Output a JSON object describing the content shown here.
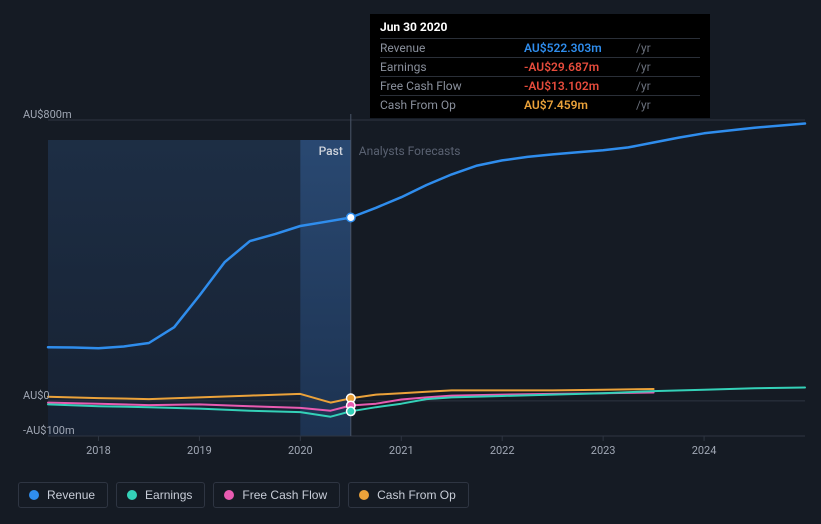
{
  "chart": {
    "type": "line",
    "background_color": "#151b24",
    "grid_color": "#2e3542",
    "text_color": "#a0a7b4",
    "muted_text_color": "#5a6272",
    "past_area_fill": "#1b2a41",
    "highlight_fill": "#1f3a5f",
    "y_axis": {
      "min": -100,
      "max": 800,
      "ticks": [
        {
          "value": 800,
          "label": "AU$800m"
        },
        {
          "value": 0,
          "label": "AU$0"
        },
        {
          "value": -100,
          "label": "-AU$100m"
        }
      ]
    },
    "x_axis": {
      "min": 2017.5,
      "max": 2025.0,
      "ticks": [
        2018,
        2019,
        2020,
        2021,
        2022,
        2023,
        2024
      ]
    },
    "divider_x": 2020.5,
    "highlight_band": {
      "start": 2020.0,
      "end": 2020.5
    },
    "section_labels": {
      "past": "Past",
      "forecast": "Analysts Forecasts"
    },
    "series": [
      {
        "id": "revenue",
        "name": "Revenue",
        "color": "#2f8ded",
        "width": 2.5,
        "data": [
          [
            2017.5,
            153
          ],
          [
            2017.75,
            152
          ],
          [
            2018.0,
            150
          ],
          [
            2018.25,
            155
          ],
          [
            2018.5,
            165
          ],
          [
            2018.75,
            210
          ],
          [
            2019.0,
            300
          ],
          [
            2019.25,
            395
          ],
          [
            2019.5,
            455
          ],
          [
            2019.75,
            475
          ],
          [
            2020.0,
            498
          ],
          [
            2020.25,
            510
          ],
          [
            2020.5,
            522.303
          ],
          [
            2020.75,
            550
          ],
          [
            2021.0,
            580
          ],
          [
            2021.25,
            615
          ],
          [
            2021.5,
            645
          ],
          [
            2021.75,
            670
          ],
          [
            2022.0,
            685
          ],
          [
            2022.25,
            695
          ],
          [
            2022.5,
            702
          ],
          [
            2022.75,
            708
          ],
          [
            2023.0,
            714
          ],
          [
            2023.25,
            722
          ],
          [
            2023.5,
            736
          ],
          [
            2023.75,
            750
          ],
          [
            2024.0,
            762
          ],
          [
            2024.25,
            770
          ],
          [
            2024.5,
            778
          ],
          [
            2024.75,
            784
          ],
          [
            2025.0,
            790
          ]
        ]
      },
      {
        "id": "cash_from_op",
        "name": "Cash From Op",
        "color": "#eba23a",
        "width": 2,
        "forecast_end": 2023.5,
        "data": [
          [
            2017.5,
            12
          ],
          [
            2018.0,
            8
          ],
          [
            2018.5,
            5
          ],
          [
            2019.0,
            10
          ],
          [
            2019.5,
            15
          ],
          [
            2020.0,
            20
          ],
          [
            2020.3,
            -5
          ],
          [
            2020.5,
            7.459
          ],
          [
            2020.75,
            18
          ],
          [
            2021.0,
            22
          ],
          [
            2021.25,
            26
          ],
          [
            2021.5,
            30
          ],
          [
            2022.0,
            30
          ],
          [
            2022.5,
            30
          ],
          [
            2023.0,
            32
          ],
          [
            2023.5,
            34
          ]
        ]
      },
      {
        "id": "free_cash_flow",
        "name": "Free Cash Flow",
        "color": "#e85bb1",
        "width": 2,
        "forecast_end": 2023.5,
        "data": [
          [
            2017.5,
            -5
          ],
          [
            2018.0,
            -8
          ],
          [
            2018.5,
            -12
          ],
          [
            2019.0,
            -10
          ],
          [
            2019.5,
            -15
          ],
          [
            2020.0,
            -20
          ],
          [
            2020.3,
            -28
          ],
          [
            2020.5,
            -13.102
          ],
          [
            2020.75,
            -8
          ],
          [
            2021.0,
            4
          ],
          [
            2021.25,
            10
          ],
          [
            2021.5,
            15
          ],
          [
            2022.0,
            18
          ],
          [
            2022.5,
            20
          ],
          [
            2023.0,
            22
          ],
          [
            2023.5,
            24
          ]
        ]
      },
      {
        "id": "earnings",
        "name": "Earnings",
        "color": "#34d1b8",
        "width": 2,
        "data": [
          [
            2017.5,
            -10
          ],
          [
            2018.0,
            -15
          ],
          [
            2018.5,
            -18
          ],
          [
            2019.0,
            -22
          ],
          [
            2019.5,
            -28
          ],
          [
            2020.0,
            -32
          ],
          [
            2020.3,
            -45
          ],
          [
            2020.5,
            -29.687
          ],
          [
            2020.75,
            -18
          ],
          [
            2021.0,
            -8
          ],
          [
            2021.25,
            5
          ],
          [
            2021.5,
            10
          ],
          [
            2022.0,
            14
          ],
          [
            2022.5,
            18
          ],
          [
            2023.0,
            22
          ],
          [
            2023.5,
            28
          ],
          [
            2024.0,
            32
          ],
          [
            2024.5,
            36
          ],
          [
            2025.0,
            38
          ]
        ]
      }
    ],
    "markers": {
      "x": 2020.5,
      "points": [
        {
          "series": "revenue",
          "y": 522.303,
          "fill": "#ffffff",
          "stroke": "#2f8ded"
        },
        {
          "series": "cash_from_op",
          "y": 7.459,
          "fill": "#eba23a",
          "stroke": "#ffffff"
        },
        {
          "series": "free_cash_flow",
          "y": -13.102,
          "fill": "#e85bb1",
          "stroke": "#ffffff"
        },
        {
          "series": "earnings",
          "y": -29.687,
          "fill": "#34d1b8",
          "stroke": "#ffffff"
        }
      ],
      "radius": 4
    }
  },
  "tooltip": {
    "date": "Jun 30 2020",
    "unit": "/yr",
    "rows": [
      {
        "label": "Revenue",
        "value": "AU$522.303m",
        "color": "#2f8ded"
      },
      {
        "label": "Earnings",
        "value": "-AU$29.687m",
        "color": "#e74c3c"
      },
      {
        "label": "Free Cash Flow",
        "value": "-AU$13.102m",
        "color": "#e74c3c"
      },
      {
        "label": "Cash From Op",
        "value": "AU$7.459m",
        "color": "#eba23a"
      }
    ]
  },
  "legend": [
    {
      "id": "revenue",
      "label": "Revenue",
      "color": "#2f8ded"
    },
    {
      "id": "earnings",
      "label": "Earnings",
      "color": "#34d1b8"
    },
    {
      "id": "free_cash_flow",
      "label": "Free Cash Flow",
      "color": "#e85bb1"
    },
    {
      "id": "cash_from_op",
      "label": "Cash From Op",
      "color": "#eba23a"
    }
  ]
}
